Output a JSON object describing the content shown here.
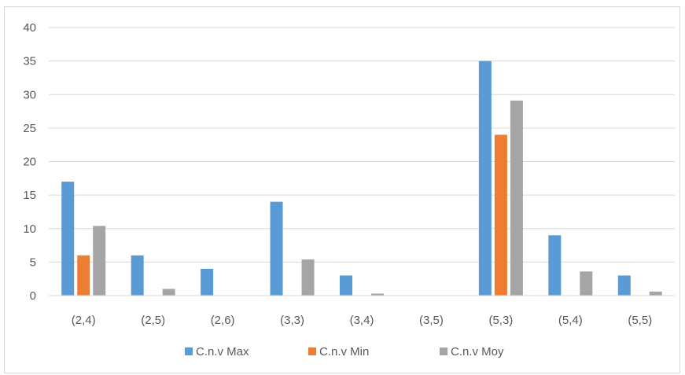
{
  "chart_data": {
    "type": "bar",
    "categories": [
      "(2,4)",
      "(2,5)",
      "(2,6)",
      "(3,3)",
      "(3,4)",
      "(3,5)",
      "(5,3)",
      "(5,4)",
      "(5,5)"
    ],
    "series": [
      {
        "name": "C.n.v Max",
        "color": "#5b9bd5",
        "values": [
          17,
          6,
          4,
          14,
          3,
          0,
          35,
          9,
          3
        ]
      },
      {
        "name": "C.n.v Min",
        "color": "#ed7d31",
        "values": [
          6,
          0,
          0,
          0,
          0,
          0,
          24,
          0,
          0
        ]
      },
      {
        "name": "C.n.v Moy",
        "color": "#a5a5a5",
        "values": [
          10.4,
          1.0,
          0,
          5.4,
          0.3,
          0,
          29.1,
          3.6,
          0.6
        ]
      }
    ],
    "yticks": [
      "0",
      "5",
      "10",
      "15",
      "20",
      "25",
      "30",
      "35",
      "40"
    ],
    "ylim": [
      0,
      40
    ],
    "grid": true,
    "legend_position": "bottom",
    "title": "",
    "xlabel": "",
    "ylabel": ""
  }
}
